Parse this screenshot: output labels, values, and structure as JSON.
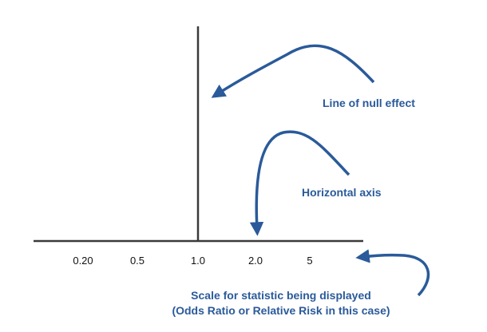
{
  "colors": {
    "axis": "#3a3a3a",
    "accent": "#2a5a9a",
    "tick_text": "#111111"
  },
  "scale": {
    "ticks": [
      "0.20",
      "0.5",
      "1.0",
      "2.0",
      "5"
    ]
  },
  "annotations": {
    "null_line": "Line of null effect",
    "horizontal_axis": "Horizontal axis",
    "scale_line1": "Scale for statistic being displayed",
    "scale_line2": "(Odds Ratio or Relative Risk in this case)"
  }
}
